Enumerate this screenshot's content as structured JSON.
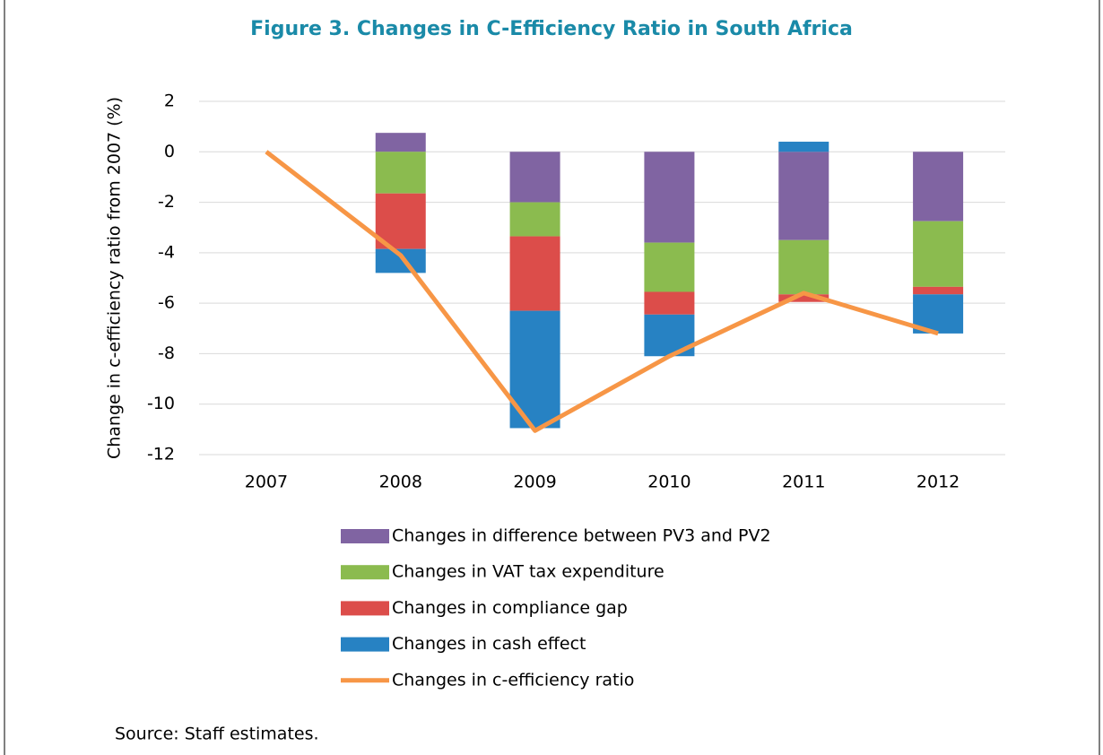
{
  "chart_data": {
    "type": "bar",
    "title": "Figure 3. Changes in C-Efficiency Ratio in South Africa",
    "y_label": "Change in c-efficiency ratio from 2007 (%)",
    "categories": [
      "2007",
      "2008",
      "2009",
      "2010",
      "2011",
      "2012"
    ],
    "series": [
      {
        "name": "Changes in difference between PV3 and PV2",
        "color": "#8064a2",
        "values": [
          null,
          0.75,
          -2.0,
          -3.6,
          -3.5,
          -2.75
        ]
      },
      {
        "name": "Changes in VAT tax expenditure",
        "color": "#8bbb4f",
        "values": [
          null,
          -1.65,
          -1.35,
          -1.95,
          -2.15,
          -2.6
        ]
      },
      {
        "name": "Changes in compliance gap",
        "color": "#dc4d4a",
        "values": [
          null,
          -2.2,
          -2.95,
          -0.9,
          -0.3,
          -0.3
        ]
      },
      {
        "name": "Changes in cash effect",
        "color": "#2782c3",
        "values": [
          null,
          -0.95,
          -4.65,
          -1.65,
          0.4,
          -1.55
        ]
      },
      {
        "name": "Changes in c-efficiency ratio",
        "color": "#f79646",
        "type": "line",
        "values": [
          0,
          -4.1,
          -11.05,
          -8.1,
          -5.6,
          -7.2
        ]
      }
    ],
    "ylim": [
      -12,
      2
    ],
    "yticks": [
      -12,
      -10,
      -8,
      -6,
      -4,
      -2,
      0,
      2
    ],
    "grid": true,
    "source": "Source: Staff estimates."
  }
}
